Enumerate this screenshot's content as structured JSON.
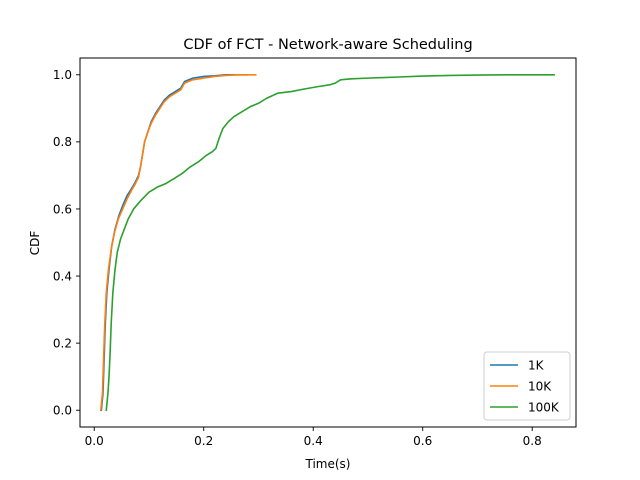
{
  "chart_data": {
    "type": "line",
    "title": "CDF of FCT - Network-aware Scheduling",
    "xlabel": "Time(s)",
    "ylabel": "CDF",
    "xlim": [
      -0.026,
      0.88
    ],
    "ylim": [
      -0.05,
      1.05
    ],
    "xticks": [
      0.0,
      0.2,
      0.4,
      0.6,
      0.8
    ],
    "xtick_labels": [
      "0.0",
      "0.2",
      "0.4",
      "0.6",
      "0.8"
    ],
    "yticks": [
      0.0,
      0.2,
      0.4,
      0.6,
      0.8,
      1.0
    ],
    "ytick_labels": [
      "0.0",
      "0.2",
      "0.4",
      "0.6",
      "0.8",
      "1.0"
    ],
    "grid": false,
    "legend_position": "lower right",
    "series": [
      {
        "name": "1K",
        "color": "#1f77b4",
        "points": [
          [
            0.013,
            0.0
          ],
          [
            0.016,
            0.05
          ],
          [
            0.018,
            0.15
          ],
          [
            0.02,
            0.25
          ],
          [
            0.023,
            0.35
          ],
          [
            0.027,
            0.42
          ],
          [
            0.032,
            0.49
          ],
          [
            0.038,
            0.54
          ],
          [
            0.045,
            0.58
          ],
          [
            0.052,
            0.61
          ],
          [
            0.06,
            0.64
          ],
          [
            0.068,
            0.66
          ],
          [
            0.075,
            0.68
          ],
          [
            0.081,
            0.7
          ],
          [
            0.085,
            0.73
          ],
          [
            0.088,
            0.76
          ],
          [
            0.092,
            0.8
          ],
          [
            0.098,
            0.83
          ],
          [
            0.104,
            0.86
          ],
          [
            0.112,
            0.885
          ],
          [
            0.12,
            0.905
          ],
          [
            0.128,
            0.925
          ],
          [
            0.138,
            0.94
          ],
          [
            0.148,
            0.95
          ],
          [
            0.158,
            0.96
          ],
          [
            0.165,
            0.98
          ],
          [
            0.18,
            0.99
          ],
          [
            0.2,
            0.995
          ],
          [
            0.22,
            0.997
          ],
          [
            0.24,
            1.0
          ],
          [
            0.28,
            1.0
          ]
        ]
      },
      {
        "name": "10K",
        "color": "#ff7f0e",
        "points": [
          [
            0.012,
            0.0
          ],
          [
            0.015,
            0.05
          ],
          [
            0.017,
            0.15
          ],
          [
            0.019,
            0.25
          ],
          [
            0.022,
            0.35
          ],
          [
            0.026,
            0.42
          ],
          [
            0.031,
            0.48
          ],
          [
            0.037,
            0.53
          ],
          [
            0.044,
            0.57
          ],
          [
            0.052,
            0.6
          ],
          [
            0.06,
            0.63
          ],
          [
            0.068,
            0.655
          ],
          [
            0.075,
            0.675
          ],
          [
            0.081,
            0.695
          ],
          [
            0.085,
            0.73
          ],
          [
            0.088,
            0.76
          ],
          [
            0.092,
            0.8
          ],
          [
            0.098,
            0.83
          ],
          [
            0.104,
            0.855
          ],
          [
            0.112,
            0.88
          ],
          [
            0.12,
            0.9
          ],
          [
            0.128,
            0.92
          ],
          [
            0.138,
            0.935
          ],
          [
            0.148,
            0.945
          ],
          [
            0.158,
            0.955
          ],
          [
            0.165,
            0.975
          ],
          [
            0.18,
            0.985
          ],
          [
            0.2,
            0.99
          ],
          [
            0.22,
            0.995
          ],
          [
            0.24,
            0.998
          ],
          [
            0.26,
            1.0
          ],
          [
            0.295,
            1.0
          ]
        ]
      },
      {
        "name": "100K",
        "color": "#2ca02c",
        "points": [
          [
            0.022,
            0.0
          ],
          [
            0.025,
            0.05
          ],
          [
            0.027,
            0.1
          ],
          [
            0.029,
            0.17
          ],
          [
            0.031,
            0.26
          ],
          [
            0.034,
            0.35
          ],
          [
            0.038,
            0.42
          ],
          [
            0.042,
            0.47
          ],
          [
            0.048,
            0.51
          ],
          [
            0.055,
            0.54
          ],
          [
            0.062,
            0.57
          ],
          [
            0.072,
            0.6
          ],
          [
            0.085,
            0.625
          ],
          [
            0.1,
            0.65
          ],
          [
            0.115,
            0.665
          ],
          [
            0.13,
            0.675
          ],
          [
            0.145,
            0.69
          ],
          [
            0.16,
            0.705
          ],
          [
            0.175,
            0.725
          ],
          [
            0.19,
            0.74
          ],
          [
            0.205,
            0.76
          ],
          [
            0.215,
            0.77
          ],
          [
            0.222,
            0.78
          ],
          [
            0.228,
            0.81
          ],
          [
            0.235,
            0.84
          ],
          [
            0.245,
            0.86
          ],
          [
            0.255,
            0.875
          ],
          [
            0.27,
            0.89
          ],
          [
            0.285,
            0.905
          ],
          [
            0.3,
            0.915
          ],
          [
            0.315,
            0.93
          ],
          [
            0.335,
            0.945
          ],
          [
            0.36,
            0.95
          ],
          [
            0.385,
            0.958
          ],
          [
            0.41,
            0.965
          ],
          [
            0.43,
            0.97
          ],
          [
            0.44,
            0.975
          ],
          [
            0.45,
            0.985
          ],
          [
            0.47,
            0.988
          ],
          [
            0.5,
            0.99
          ],
          [
            0.55,
            0.993
          ],
          [
            0.6,
            0.996
          ],
          [
            0.65,
            0.998
          ],
          [
            0.7,
            0.999
          ],
          [
            0.75,
            1.0
          ],
          [
            0.84,
            1.0
          ]
        ]
      }
    ]
  }
}
